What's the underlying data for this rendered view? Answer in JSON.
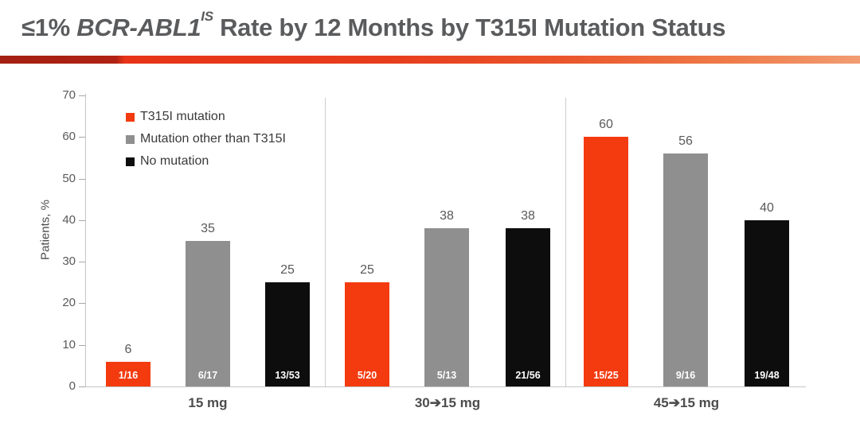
{
  "title": {
    "prefix": "≤1% ",
    "gene": "BCR-ABL1",
    "superscript": "IS",
    "rest": " Rate by 12 Months by T315I Mutation Status"
  },
  "accent_rule_colors": [
    "#a32012",
    "#e73418",
    "#f29c72"
  ],
  "chart_data": {
    "type": "bar",
    "title": "≤1% BCR-ABL1 IS Rate by 12 Months by T315I Mutation Status",
    "xlabel": "",
    "ylabel": "Patients, %",
    "ylim": [
      0,
      70
    ],
    "yticks": [
      0,
      10,
      20,
      30,
      40,
      50,
      60,
      70
    ],
    "grid": false,
    "legend_position": "top-left",
    "categories": [
      "15 mg",
      "30➔15 mg",
      "45➔15 mg"
    ],
    "series": [
      {
        "name": "T315I mutation",
        "color": "#f33b0f",
        "values": [
          6,
          25,
          60
        ],
        "fractions": [
          "1/16",
          "5/20",
          "15/25"
        ]
      },
      {
        "name": "Mutation other than T315I",
        "color": "#8f8f8f",
        "values": [
          35,
          38,
          56
        ],
        "fractions": [
          "6/17",
          "5/13",
          "9/16"
        ]
      },
      {
        "name": "No mutation",
        "color": "#0d0d0d",
        "values": [
          25,
          38,
          40
        ],
        "fractions": [
          "13/53",
          "21/56",
          "19/48"
        ]
      }
    ]
  }
}
